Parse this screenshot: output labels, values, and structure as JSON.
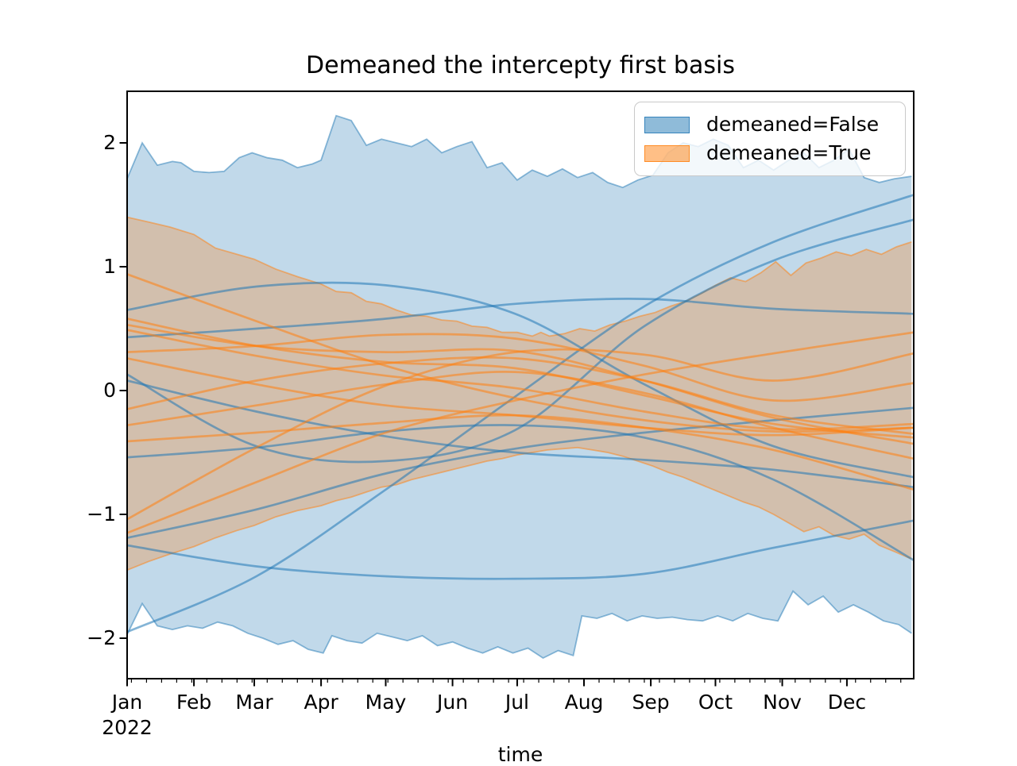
{
  "title": "Demeaned the intercepty first basis",
  "xlabel": "time",
  "x_axis": {
    "year_label": "2022",
    "domain_days": [
      0,
      365
    ],
    "minor_tick_start_day": 2,
    "minor_tick_interval_days": 7,
    "months": [
      {
        "label": "Jan",
        "day": 0
      },
      {
        "label": "Feb",
        "day": 31
      },
      {
        "label": "Mar",
        "day": 59
      },
      {
        "label": "Apr",
        "day": 90
      },
      {
        "label": "May",
        "day": 120
      },
      {
        "label": "Jun",
        "day": 151
      },
      {
        "label": "Jul",
        "day": 181
      },
      {
        "label": "Aug",
        "day": 212
      },
      {
        "label": "Sep",
        "day": 243
      },
      {
        "label": "Oct",
        "day": 273
      },
      {
        "label": "Nov",
        "day": 304
      },
      {
        "label": "Dec",
        "day": 334
      }
    ]
  },
  "y_axis": {
    "ticks": [
      {
        "label": "2",
        "value": 2
      },
      {
        "label": "1",
        "value": 1
      },
      {
        "label": "0",
        "value": 0
      },
      {
        "label": "−1",
        "value": -1
      },
      {
        "label": "−2",
        "value": -2
      }
    ],
    "ylim": [
      -2.37,
      2.43
    ]
  },
  "legend": {
    "entries": [
      {
        "label": "demeaned=False",
        "color": "#1f77b4"
      },
      {
        "label": "demeaned=True",
        "color": "#ff7f0e"
      }
    ]
  },
  "style": {
    "fill_alpha": 0.28,
    "band_edge_alpha": 0.5,
    "line_alpha": 0.55,
    "axis_color": "#000000",
    "background": "#ffffff"
  },
  "chart_data": {
    "type": "line",
    "title": "Demeaned the intercepty first basis",
    "xlabel": "time",
    "x_unit": "day_of_year_2022",
    "ylim": [
      -2.37,
      2.43
    ],
    "yticks": [
      -2,
      -1,
      0,
      1,
      2
    ],
    "legend_position": "upper right",
    "grid": false,
    "series_groups": [
      {
        "name": "demeaned=False",
        "color": "#1f77b4",
        "band": {
          "upper": [
            [
              0,
              1.71
            ],
            [
              7,
              2.0
            ],
            [
              14,
              1.82
            ],
            [
              21,
              1.85
            ],
            [
              25,
              1.84
            ],
            [
              31,
              1.77
            ],
            [
              38,
              1.76
            ],
            [
              45,
              1.77
            ],
            [
              52,
              1.88
            ],
            [
              58,
              1.92
            ],
            [
              65,
              1.88
            ],
            [
              72,
              1.86
            ],
            [
              79,
              1.8
            ],
            [
              86,
              1.83
            ],
            [
              90,
              1.86
            ],
            [
              97,
              2.22
            ],
            [
              104,
              2.18
            ],
            [
              111,
              1.98
            ],
            [
              118,
              2.03
            ],
            [
              125,
              2.0
            ],
            [
              132,
              1.97
            ],
            [
              139,
              2.03
            ],
            [
              146,
              1.92
            ],
            [
              153,
              1.97
            ],
            [
              160,
              2.01
            ],
            [
              167,
              1.8
            ],
            [
              174,
              1.84
            ],
            [
              181,
              1.7
            ],
            [
              188,
              1.78
            ],
            [
              195,
              1.73
            ],
            [
              202,
              1.79
            ],
            [
              209,
              1.72
            ],
            [
              216,
              1.76
            ],
            [
              223,
              1.68
            ],
            [
              230,
              1.64
            ],
            [
              237,
              1.7
            ],
            [
              244,
              1.74
            ],
            [
              251,
              1.92
            ],
            [
              258,
              2.0
            ],
            [
              265,
              1.97
            ],
            [
              272,
              2.03
            ],
            [
              279,
              1.98
            ],
            [
              286,
              1.8
            ],
            [
              293,
              1.86
            ],
            [
              300,
              1.78
            ],
            [
              307,
              1.86
            ],
            [
              314,
              1.92
            ],
            [
              321,
              1.8
            ],
            [
              328,
              1.86
            ],
            [
              335,
              1.95
            ],
            [
              342,
              1.72
            ],
            [
              349,
              1.68
            ],
            [
              356,
              1.71
            ],
            [
              364,
              1.73
            ]
          ],
          "lower": [
            [
              0,
              -1.97
            ],
            [
              7,
              -1.72
            ],
            [
              14,
              -1.9
            ],
            [
              21,
              -1.93
            ],
            [
              28,
              -1.9
            ],
            [
              35,
              -1.92
            ],
            [
              42,
              -1.87
            ],
            [
              49,
              -1.9
            ],
            [
              56,
              -1.96
            ],
            [
              63,
              -2.0
            ],
            [
              70,
              -2.05
            ],
            [
              77,
              -2.02
            ],
            [
              84,
              -2.09
            ],
            [
              91,
              -2.12
            ],
            [
              95,
              -1.98
            ],
            [
              102,
              -2.02
            ],
            [
              109,
              -2.04
            ],
            [
              116,
              -1.96
            ],
            [
              123,
              -1.99
            ],
            [
              130,
              -2.02
            ],
            [
              137,
              -1.98
            ],
            [
              144,
              -2.06
            ],
            [
              151,
              -2.03
            ],
            [
              158,
              -2.08
            ],
            [
              165,
              -2.12
            ],
            [
              172,
              -2.07
            ],
            [
              179,
              -2.12
            ],
            [
              186,
              -2.08
            ],
            [
              193,
              -2.16
            ],
            [
              200,
              -2.1
            ],
            [
              207,
              -2.14
            ],
            [
              211,
              -1.82
            ],
            [
              218,
              -1.84
            ],
            [
              225,
              -1.8
            ],
            [
              232,
              -1.86
            ],
            [
              239,
              -1.82
            ],
            [
              246,
              -1.84
            ],
            [
              253,
              -1.83
            ],
            [
              260,
              -1.85
            ],
            [
              267,
              -1.86
            ],
            [
              274,
              -1.82
            ],
            [
              281,
              -1.86
            ],
            [
              288,
              -1.8
            ],
            [
              295,
              -1.84
            ],
            [
              302,
              -1.86
            ],
            [
              309,
              -1.62
            ],
            [
              316,
              -1.73
            ],
            [
              323,
              -1.66
            ],
            [
              330,
              -1.79
            ],
            [
              337,
              -1.73
            ],
            [
              344,
              -1.79
            ],
            [
              351,
              -1.86
            ],
            [
              358,
              -1.89
            ],
            [
              364,
              -1.96
            ]
          ]
        },
        "lines": {
          "anchor_days": [
            0,
            60,
            120,
            180,
            240,
            300,
            365
          ],
          "values": [
            [
              -1.95,
              -1.5,
              -0.8,
              -0.05,
              0.68,
              1.2,
              1.58
            ],
            [
              -1.25,
              -1.42,
              -1.5,
              -1.52,
              -1.48,
              -1.27,
              -1.05
            ],
            [
              0.65,
              0.84,
              0.85,
              0.62,
              0.05,
              -0.45,
              -0.7
            ],
            [
              0.43,
              0.5,
              0.58,
              0.7,
              0.74,
              0.66,
              0.62
            ],
            [
              0.13,
              -0.45,
              -0.57,
              -0.32,
              0.52,
              1.05,
              1.38
            ],
            [
              0.08,
              -0.17,
              -0.37,
              -0.5,
              -0.56,
              -0.64,
              -0.78
            ],
            [
              -0.54,
              -0.46,
              -0.33,
              -0.28,
              -0.38,
              -0.72,
              -1.37
            ],
            [
              -1.19,
              -0.96,
              -0.67,
              -0.47,
              -0.34,
              -0.24,
              -0.14
            ]
          ]
        }
      },
      {
        "name": "demeaned=True",
        "color": "#ff7f0e",
        "band": {
          "upper": [
            [
              0,
              1.4
            ],
            [
              10,
              1.36
            ],
            [
              20,
              1.32
            ],
            [
              31,
              1.26
            ],
            [
              41,
              1.15
            ],
            [
              51,
              1.1
            ],
            [
              59,
              1.06
            ],
            [
              69,
              0.98
            ],
            [
              79,
              0.92
            ],
            [
              90,
              0.86
            ],
            [
              97,
              0.8
            ],
            [
              104,
              0.79
            ],
            [
              111,
              0.72
            ],
            [
              118,
              0.7
            ],
            [
              125,
              0.65
            ],
            [
              132,
              0.61
            ],
            [
              139,
              0.6
            ],
            [
              146,
              0.57
            ],
            [
              153,
              0.56
            ],
            [
              160,
              0.52
            ],
            [
              167,
              0.51
            ],
            [
              174,
              0.47
            ],
            [
              181,
              0.47
            ],
            [
              188,
              0.44
            ],
            [
              192,
              0.47
            ],
            [
              196,
              0.44
            ],
            [
              203,
              0.46
            ],
            [
              210,
              0.5
            ],
            [
              217,
              0.48
            ],
            [
              224,
              0.53
            ],
            [
              231,
              0.56
            ],
            [
              238,
              0.6
            ],
            [
              245,
              0.63
            ],
            [
              252,
              0.68
            ],
            [
              259,
              0.72
            ],
            [
              266,
              0.78
            ],
            [
              273,
              0.85
            ],
            [
              280,
              0.91
            ],
            [
              287,
              0.88
            ],
            [
              294,
              0.95
            ],
            [
              301,
              1.04
            ],
            [
              308,
              0.93
            ],
            [
              315,
              1.03
            ],
            [
              322,
              1.07
            ],
            [
              329,
              1.12
            ],
            [
              336,
              1.09
            ],
            [
              343,
              1.14
            ],
            [
              350,
              1.1
            ],
            [
              357,
              1.16
            ],
            [
              364,
              1.2
            ]
          ],
          "lower": [
            [
              0,
              -1.45
            ],
            [
              10,
              -1.38
            ],
            [
              20,
              -1.32
            ],
            [
              31,
              -1.26
            ],
            [
              41,
              -1.19
            ],
            [
              51,
              -1.13
            ],
            [
              59,
              -1.09
            ],
            [
              69,
              -1.02
            ],
            [
              79,
              -0.97
            ],
            [
              90,
              -0.93
            ],
            [
              97,
              -0.89
            ],
            [
              104,
              -0.86
            ],
            [
              111,
              -0.82
            ],
            [
              118,
              -0.78
            ],
            [
              125,
              -0.76
            ],
            [
              132,
              -0.72
            ],
            [
              139,
              -0.69
            ],
            [
              146,
              -0.66
            ],
            [
              153,
              -0.63
            ],
            [
              160,
              -0.6
            ],
            [
              167,
              -0.57
            ],
            [
              174,
              -0.55
            ],
            [
              181,
              -0.52
            ],
            [
              188,
              -0.5
            ],
            [
              195,
              -0.48
            ],
            [
              202,
              -0.47
            ],
            [
              209,
              -0.46
            ],
            [
              216,
              -0.48
            ],
            [
              223,
              -0.5
            ],
            [
              230,
              -0.53
            ],
            [
              237,
              -0.57
            ],
            [
              244,
              -0.61
            ],
            [
              251,
              -0.66
            ],
            [
              258,
              -0.7
            ],
            [
              265,
              -0.75
            ],
            [
              272,
              -0.8
            ],
            [
              279,
              -0.85
            ],
            [
              286,
              -0.9
            ],
            [
              293,
              -0.94
            ],
            [
              300,
              -1.0
            ],
            [
              307,
              -1.07
            ],
            [
              314,
              -1.14
            ],
            [
              321,
              -1.1
            ],
            [
              328,
              -1.17
            ],
            [
              335,
              -1.2
            ],
            [
              342,
              -1.16
            ],
            [
              349,
              -1.25
            ],
            [
              356,
              -1.3
            ],
            [
              364,
              -1.36
            ]
          ]
        },
        "lines": {
          "anchor_days": [
            0,
            60,
            120,
            180,
            240,
            300,
            365
          ],
          "values": [
            [
              0.94,
              0.56,
              0.2,
              -0.06,
              -0.24,
              -0.33,
              -0.3
            ],
            [
              0.58,
              0.36,
              0.23,
              0.18,
              -0.04,
              -0.27,
              -0.38
            ],
            [
              0.53,
              0.36,
              0.31,
              0.32,
              0.08,
              -0.22,
              -0.43
            ],
            [
              0.49,
              0.28,
              0.12,
              0.02,
              -0.17,
              -0.31,
              -0.27
            ],
            [
              0.31,
              0.36,
              0.45,
              0.42,
              0.2,
              -0.08,
              0.06
            ],
            [
              0.26,
              0.05,
              -0.12,
              -0.2,
              -0.3,
              -0.36,
              -0.3
            ],
            [
              -0.15,
              0.08,
              0.22,
              0.26,
              0.08,
              -0.2,
              -0.35
            ],
            [
              -0.28,
              -0.12,
              0.05,
              0.15,
              -0.02,
              -0.3,
              -0.55
            ],
            [
              -0.41,
              -0.34,
              -0.26,
              -0.2,
              -0.3,
              -0.48,
              -0.8
            ],
            [
              -1.04,
              -0.46,
              0.04,
              0.31,
              0.29,
              0.08,
              0.3
            ],
            [
              -1.15,
              -0.74,
              -0.34,
              -0.08,
              0.13,
              0.3,
              0.47
            ]
          ]
        }
      }
    ]
  }
}
